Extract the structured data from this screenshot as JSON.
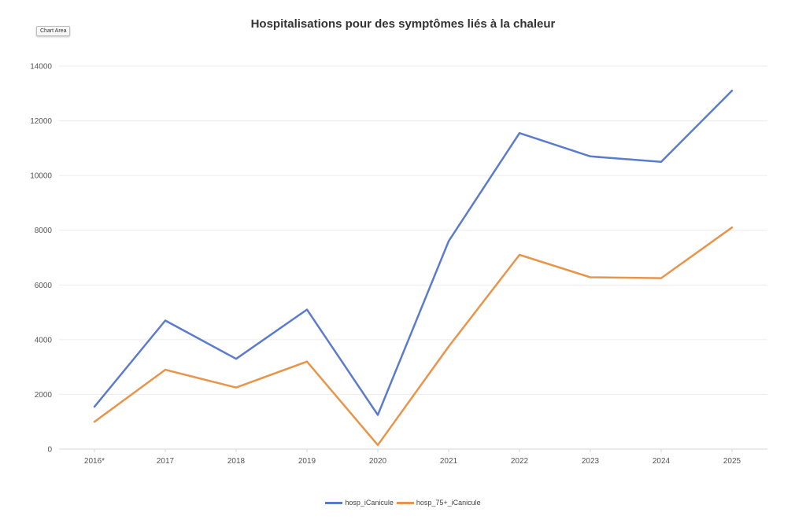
{
  "chart_area_label": "Chart Area",
  "colors": {
    "series_total": "#5b7ccc",
    "series_75plus": "#e8954a",
    "grid": "#ececec",
    "axis": "#d6d6d6"
  },
  "chart_data": {
    "type": "line",
    "title": "Hospitalisations pour des symptômes liés à la chaleur",
    "xlabel": "",
    "ylabel": "",
    "categories": [
      "2016*",
      "2017",
      "2018",
      "2019",
      "2020",
      "2021",
      "2022",
      "2023",
      "2024",
      "2025"
    ],
    "ylim": [
      0,
      14000
    ],
    "yticks": [
      0,
      2000,
      4000,
      6000,
      8000,
      10000,
      12000,
      14000
    ],
    "grid": true,
    "legend_position": "bottom",
    "series": [
      {
        "name": "hosp_iCanicule",
        "color": "#5b7ccc",
        "values": [
          1550,
          4700,
          3300,
          5100,
          1250,
          7600,
          11550,
          10700,
          10500,
          13100
        ]
      },
      {
        "name": "hosp_75+_iCanicule",
        "color": "#e8954a",
        "values": [
          1000,
          2900,
          2250,
          3200,
          150,
          3750,
          7100,
          6280,
          6250,
          8100
        ]
      }
    ]
  }
}
